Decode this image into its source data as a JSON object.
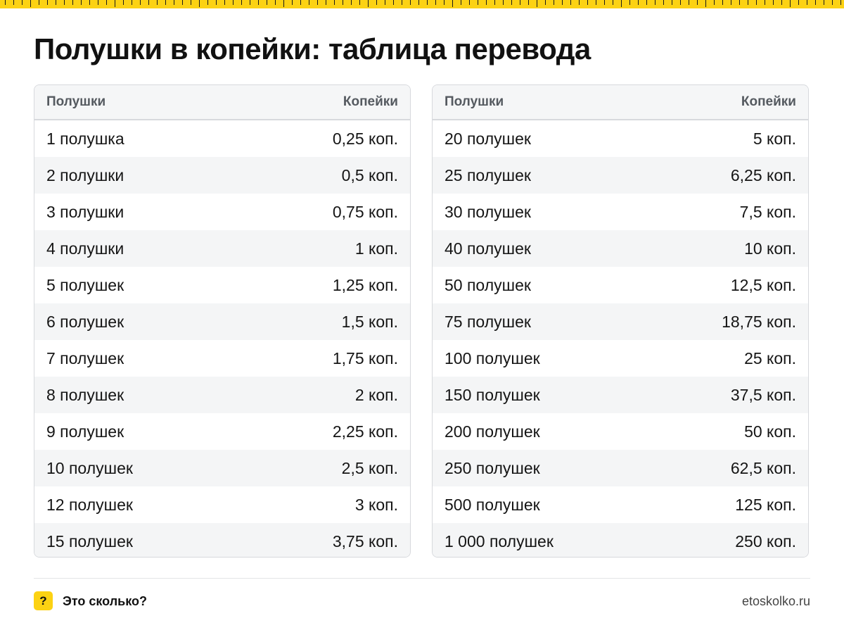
{
  "colors": {
    "accent": "#fcd213",
    "header_bg": "#f5f6f7",
    "stripe": "#f4f5f6",
    "border": "#d7d9dd"
  },
  "title": "Полушки в копейки: таблица перевода",
  "table_left": {
    "col1": "Полушки",
    "col2": "Копейки",
    "rows": [
      {
        "a": "1 полушка",
        "b": "0,25 коп."
      },
      {
        "a": "2 полушки",
        "b": "0,5 коп."
      },
      {
        "a": "3 полушки",
        "b": "0,75 коп."
      },
      {
        "a": "4 полушки",
        "b": "1 коп."
      },
      {
        "a": "5 полушек",
        "b": "1,25 коп."
      },
      {
        "a": "6 полушек",
        "b": "1,5 коп."
      },
      {
        "a": "7 полушек",
        "b": "1,75 коп."
      },
      {
        "a": "8 полушек",
        "b": "2 коп."
      },
      {
        "a": "9 полушек",
        "b": "2,25 коп."
      },
      {
        "a": "10 полушек",
        "b": "2,5 коп."
      },
      {
        "a": "12 полушек",
        "b": "3 коп."
      },
      {
        "a": "15 полушек",
        "b": "3,75 коп."
      }
    ]
  },
  "table_right": {
    "col1": "Полушки",
    "col2": "Копейки",
    "rows": [
      {
        "a": "20 полушек",
        "b": "5 коп."
      },
      {
        "a": "25 полушек",
        "b": "6,25 коп."
      },
      {
        "a": "30 полушек",
        "b": "7,5 коп."
      },
      {
        "a": "40 полушек",
        "b": "10 коп."
      },
      {
        "a": "50 полушек",
        "b": "12,5 коп."
      },
      {
        "a": "75 полушек",
        "b": "18,75 коп."
      },
      {
        "a": "100 полушек",
        "b": "25 коп."
      },
      {
        "a": "150 полушек",
        "b": "37,5 коп."
      },
      {
        "a": "200 полушек",
        "b": "50 коп."
      },
      {
        "a": "250 полушек",
        "b": "62,5 коп."
      },
      {
        "a": "500 полушек",
        "b": "125 коп."
      },
      {
        "a": "1 000 полушек",
        "b": "250 коп."
      }
    ]
  },
  "footer": {
    "badge": "?",
    "brand": "Это сколько?",
    "site": "etoskolko.ru"
  }
}
